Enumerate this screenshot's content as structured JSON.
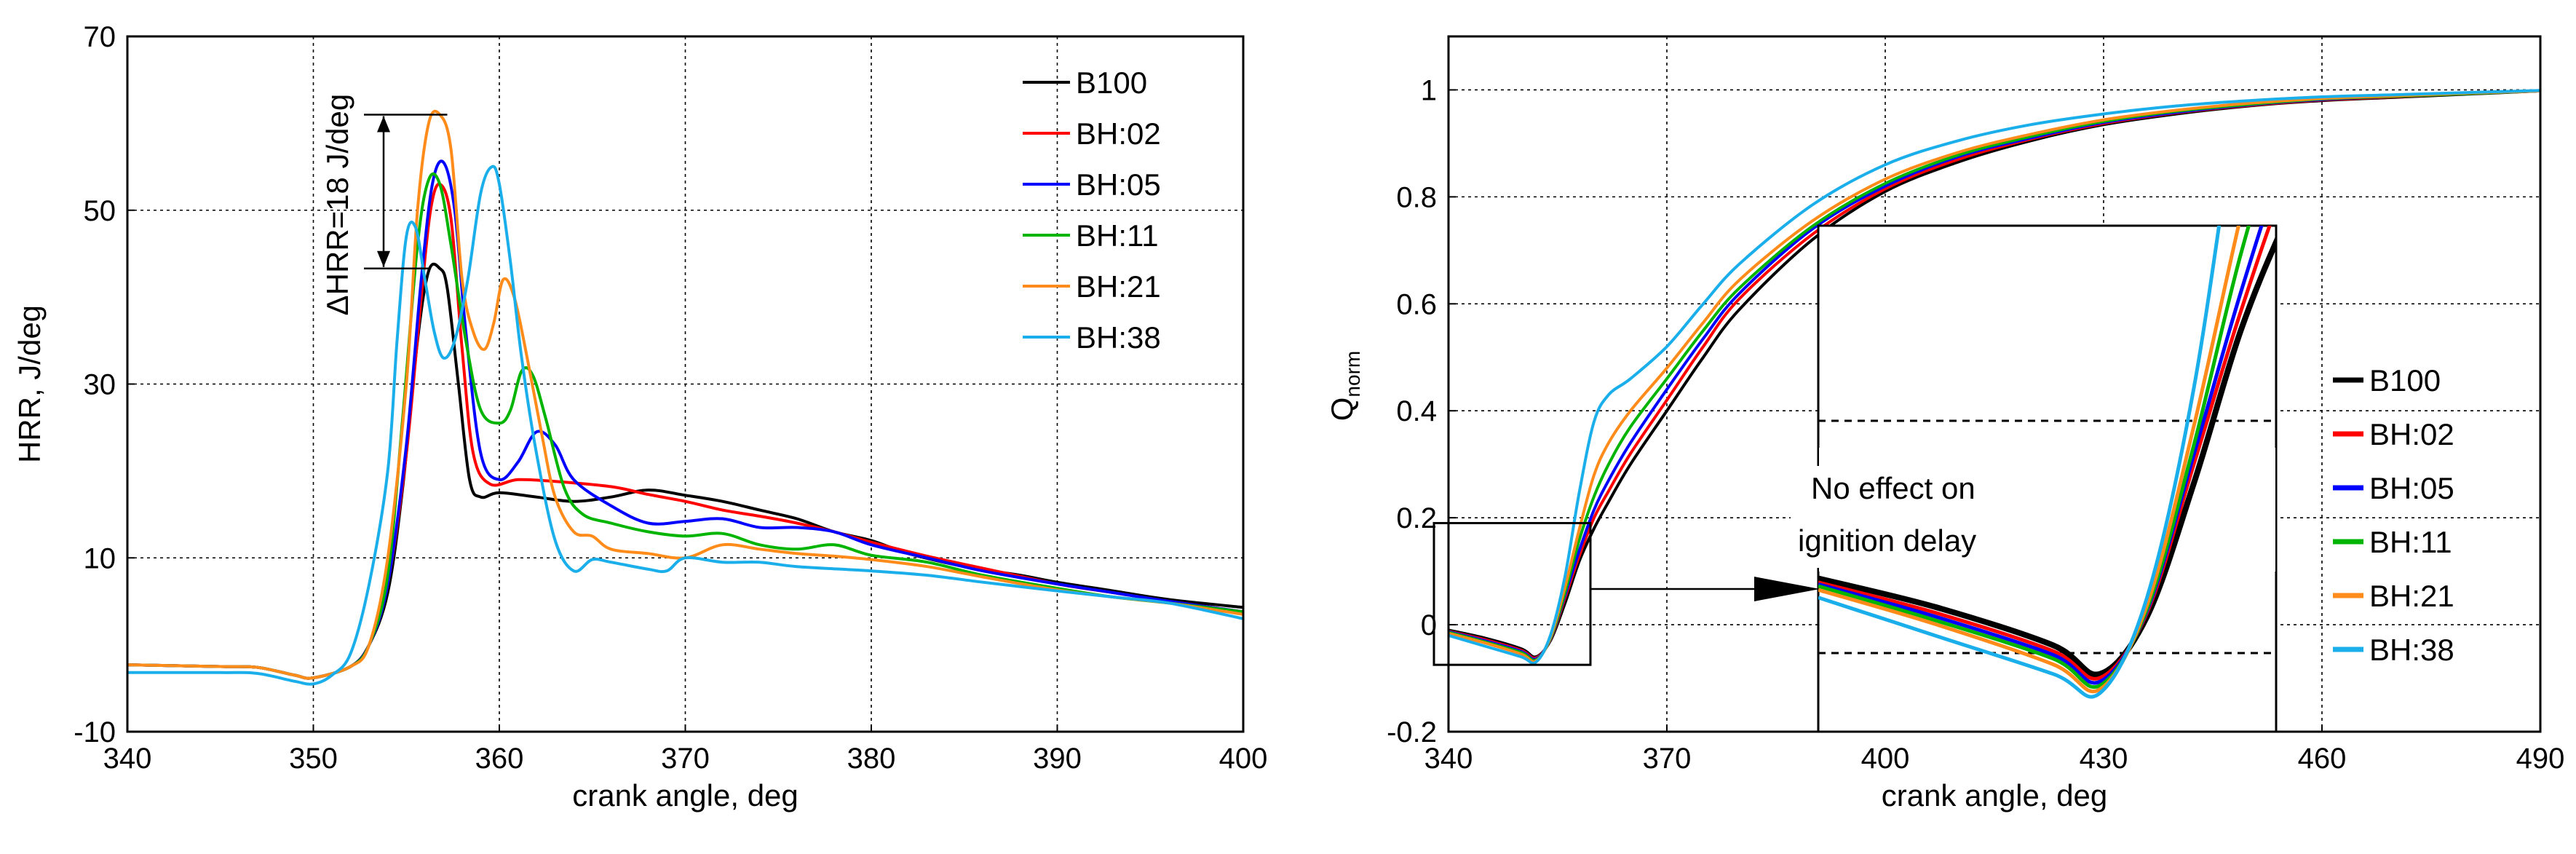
{
  "chart_data": [
    {
      "type": "line",
      "title": "",
      "xlabel": "crank angle, deg",
      "ylabel": "HRR, J/deg",
      "xlim": [
        340,
        400
      ],
      "ylim": [
        -10,
        70
      ],
      "xticks": [
        340,
        350,
        360,
        370,
        380,
        390,
        400
      ],
      "yticks": [
        -10,
        10,
        30,
        50,
        70
      ],
      "xtick_labels": [
        "340",
        "350",
        "360",
        "370",
        "380",
        "390",
        "400"
      ],
      "ytick_labels": [
        "-10",
        "10",
        "30",
        "50",
        "70"
      ],
      "grid": true,
      "legend_position": "top-right",
      "annotation": "ΔHRR=18 J/deg",
      "series": [
        {
          "name": "B100",
          "color": "#000000",
          "x": [
            340,
            345,
            347,
            349,
            350,
            352,
            353,
            354,
            354.8,
            355.6,
            356.2,
            356.8,
            357.2,
            357.8,
            358.4,
            359,
            360,
            362,
            364,
            366,
            368,
            370,
            372,
            374,
            376,
            378,
            380,
            382,
            385,
            388,
            390,
            393,
            396,
            400
          ],
          "y": [
            -2.3,
            -2.5,
            -2.6,
            -3.5,
            -3.8,
            -2.5,
            0,
            6,
            18,
            35,
            43,
            43.3,
            41,
            30,
            19,
            17,
            17.5,
            17,
            16.5,
            17,
            17.8,
            17.2,
            16.5,
            15.5,
            14.5,
            13,
            12,
            10.5,
            9,
            8,
            7.2,
            6.2,
            5.2,
            4.3
          ]
        },
        {
          "name": "BH:02",
          "color": "#ff0000",
          "x": [
            340,
            345,
            347,
            349,
            350,
            352,
            353,
            354,
            355,
            355.8,
            356.3,
            356.8,
            357.4,
            358,
            358.6,
            359.5,
            361,
            363,
            366,
            368,
            370,
            372,
            374,
            376,
            378,
            380,
            383,
            386,
            390,
            393,
            396,
            400
          ],
          "y": [
            -2.3,
            -2.5,
            -2.6,
            -3.5,
            -3.8,
            -2.5,
            0,
            7,
            22,
            40,
            50,
            53,
            49,
            34,
            22,
            18.5,
            19,
            18.8,
            18.2,
            17.3,
            16.5,
            15.5,
            14.8,
            14,
            13,
            11.8,
            10.2,
            8.8,
            7,
            6,
            5,
            3.8
          ]
        },
        {
          "name": "BH:05",
          "color": "#0000ff",
          "x": [
            340,
            345,
            347,
            349,
            350,
            352,
            353,
            354,
            355,
            355.8,
            356.4,
            357,
            357.6,
            358.2,
            359,
            360,
            361,
            362,
            363,
            364,
            366,
            368,
            370,
            372,
            374,
            376,
            378,
            380,
            383,
            386,
            390,
            393,
            396,
            400
          ],
          "y": [
            -2.3,
            -2.5,
            -2.6,
            -3.5,
            -3.8,
            -2.5,
            0,
            7,
            23,
            42,
            53,
            55.5,
            50,
            36,
            22,
            19,
            21,
            24.5,
            23,
            19,
            16,
            14,
            14.2,
            14.5,
            13.5,
            13.5,
            13,
            11.5,
            10,
            8.5,
            7,
            6,
            5,
            3.8
          ]
        },
        {
          "name": "BH:11",
          "color": "#00b400",
          "x": [
            340,
            345,
            347,
            349,
            350,
            352,
            353,
            354,
            354.8,
            355.6,
            356.2,
            356.8,
            357.4,
            358.2,
            359,
            360,
            360.6,
            361.2,
            361.8,
            362.5,
            363.5,
            364.5,
            366,
            368,
            370,
            372,
            374,
            376,
            378,
            380,
            383,
            386,
            390,
            393,
            396,
            400
          ],
          "y": [
            -2.3,
            -2.5,
            -2.6,
            -3.5,
            -3.8,
            -2.5,
            0,
            8,
            26,
            46,
            53.5,
            53,
            46,
            35,
            27,
            25.5,
            27,
            31.5,
            31,
            26,
            18,
            15,
            14,
            13,
            12.5,
            12.8,
            11.5,
            11,
            11.5,
            10.3,
            9.5,
            8,
            6.5,
            5.5,
            4.8,
            3.8
          ]
        },
        {
          "name": "BH:21",
          "color": "#ff8c1a",
          "x": [
            340,
            345,
            347,
            349,
            350,
            352,
            353,
            354,
            355,
            355.6,
            356.2,
            356.8,
            357.4,
            358,
            358.6,
            359.2,
            359.7,
            360.2,
            360.8,
            361.5,
            362.3,
            363,
            364,
            365,
            366,
            368,
            370,
            372,
            374,
            376,
            378,
            380,
            383,
            386,
            390,
            393,
            396,
            400
          ],
          "y": [
            -2.3,
            -2.5,
            -2.6,
            -3.5,
            -3.8,
            -2.5,
            0,
            10,
            30,
            50,
            60,
            61,
            57,
            42,
            36,
            34,
            37,
            42,
            40,
            33,
            24,
            17,
            13,
            12.5,
            11,
            10.5,
            10,
            11.5,
            11,
            10.5,
            10.2,
            9.8,
            9,
            7.8,
            6.3,
            5.5,
            4.8,
            3.5
          ]
        },
        {
          "name": "BH:38",
          "color": "#1aaeea",
          "x": [
            340,
            345,
            347,
            349,
            350,
            351,
            352,
            353,
            354,
            354.5,
            355,
            355.5,
            356,
            356.5,
            357,
            357.6,
            358.3,
            359,
            359.6,
            360,
            360.6,
            361.2,
            362,
            363,
            364,
            365,
            366,
            368,
            369,
            370,
            372,
            374,
            376,
            380,
            383,
            386,
            390,
            393,
            396,
            400
          ],
          "y": [
            -3.2,
            -3.2,
            -3.3,
            -4.2,
            -4.5,
            -3.5,
            -1,
            7,
            20,
            35,
            47,
            48,
            42,
            36,
            33,
            35,
            42,
            52,
            55,
            53,
            44,
            33,
            22,
            12,
            8.5,
            9.8,
            9.5,
            8.7,
            8.5,
            10,
            9.5,
            9.5,
            9,
            8.5,
            8,
            7.2,
            6.2,
            5.5,
            4.8,
            3
          ]
        }
      ]
    },
    {
      "type": "line",
      "title": "",
      "xlabel": "crank angle, deg",
      "ylabel": "Q",
      "ylabel_subscript": "norm",
      "xlim": [
        340,
        490
      ],
      "ylim": [
        -0.2,
        1.1
      ],
      "xticks": [
        340,
        370,
        400,
        430,
        460,
        490
      ],
      "yticks": [
        -0.2,
        0,
        0.2,
        0.4,
        0.6,
        0.8,
        1
      ],
      "xtick_labels": [
        "340",
        "370",
        "400",
        "430",
        "460",
        "490"
      ],
      "ytick_labels": [
        "-0.2",
        "0",
        "0.2",
        "0.4",
        "0.6",
        "0.8",
        "1"
      ],
      "grid": true,
      "legend_position": "center-right",
      "inset_annotation": "No effect on ignition delay",
      "inset_annotation_lines": [
        "No effect on",
        "ignition delay"
      ],
      "series": [
        {
          "name": "B100",
          "color": "#000000",
          "x": [
            340,
            345,
            350,
            352,
            354,
            356,
            358,
            360,
            362,
            365,
            370,
            375,
            380,
            390,
            400,
            410,
            420,
            430,
            440,
            450,
            460,
            470,
            480,
            490
          ],
          "y": [
            -0.01,
            -0.025,
            -0.045,
            -0.06,
            -0.03,
            0.04,
            0.12,
            0.18,
            0.23,
            0.3,
            0.4,
            0.5,
            0.59,
            0.72,
            0.81,
            0.865,
            0.905,
            0.935,
            0.955,
            0.97,
            0.98,
            0.986,
            0.992,
            0.998
          ]
        },
        {
          "name": "BH:02",
          "color": "#ff0000",
          "x": [
            340,
            345,
            350,
            352,
            354,
            356,
            358,
            360,
            362,
            365,
            370,
            375,
            380,
            390,
            400,
            410,
            420,
            430,
            440,
            450,
            460,
            470,
            480,
            490
          ],
          "y": [
            -0.012,
            -0.028,
            -0.048,
            -0.062,
            -0.028,
            0.05,
            0.13,
            0.2,
            0.25,
            0.32,
            0.42,
            0.52,
            0.61,
            0.73,
            0.815,
            0.87,
            0.908,
            0.937,
            0.957,
            0.971,
            0.981,
            0.987,
            0.993,
            0.998
          ]
        },
        {
          "name": "BH:05",
          "color": "#0000ff",
          "x": [
            340,
            345,
            350,
            352,
            354,
            356,
            358,
            360,
            362,
            365,
            370,
            375,
            380,
            390,
            400,
            410,
            420,
            430,
            440,
            450,
            460,
            470,
            480,
            490
          ],
          "y": [
            -0.013,
            -0.03,
            -0.05,
            -0.064,
            -0.027,
            0.055,
            0.14,
            0.215,
            0.27,
            0.34,
            0.44,
            0.535,
            0.62,
            0.74,
            0.82,
            0.875,
            0.91,
            0.939,
            0.958,
            0.972,
            0.982,
            0.988,
            0.993,
            0.998
          ]
        },
        {
          "name": "BH:11",
          "color": "#00b400",
          "x": [
            340,
            345,
            350,
            352,
            354,
            356,
            358,
            360,
            362,
            365,
            370,
            375,
            380,
            390,
            400,
            410,
            420,
            430,
            440,
            450,
            460,
            470,
            480,
            490
          ],
          "y": [
            -0.014,
            -0.032,
            -0.052,
            -0.066,
            -0.026,
            0.06,
            0.16,
            0.24,
            0.3,
            0.37,
            0.46,
            0.55,
            0.63,
            0.745,
            0.825,
            0.878,
            0.913,
            0.941,
            0.96,
            0.973,
            0.983,
            0.988,
            0.993,
            0.998
          ]
        },
        {
          "name": "BH:21",
          "color": "#ff8c1a",
          "x": [
            340,
            345,
            350,
            352,
            354,
            356,
            358,
            360,
            362,
            365,
            370,
            375,
            380,
            390,
            400,
            410,
            420,
            430,
            440,
            450,
            460,
            470,
            480,
            490
          ],
          "y": [
            -0.016,
            -0.034,
            -0.055,
            -0.068,
            -0.024,
            0.07,
            0.18,
            0.28,
            0.34,
            0.4,
            0.48,
            0.565,
            0.645,
            0.755,
            0.833,
            0.883,
            0.917,
            0.944,
            0.962,
            0.975,
            0.984,
            0.989,
            0.994,
            0.998
          ]
        },
        {
          "name": "BH:38",
          "color": "#1aaeea",
          "x": [
            340,
            345,
            350,
            352,
            354,
            356,
            358,
            360,
            362,
            365,
            370,
            375,
            380,
            390,
            400,
            410,
            420,
            430,
            440,
            450,
            460,
            470,
            480,
            490
          ],
          "y": [
            -0.02,
            -0.04,
            -0.06,
            -0.07,
            -0.02,
            0.09,
            0.25,
            0.38,
            0.43,
            0.46,
            0.52,
            0.6,
            0.675,
            0.785,
            0.86,
            0.905,
            0.935,
            0.955,
            0.97,
            0.98,
            0.987,
            0.991,
            0.995,
            0.999
          ]
        }
      ]
    }
  ]
}
